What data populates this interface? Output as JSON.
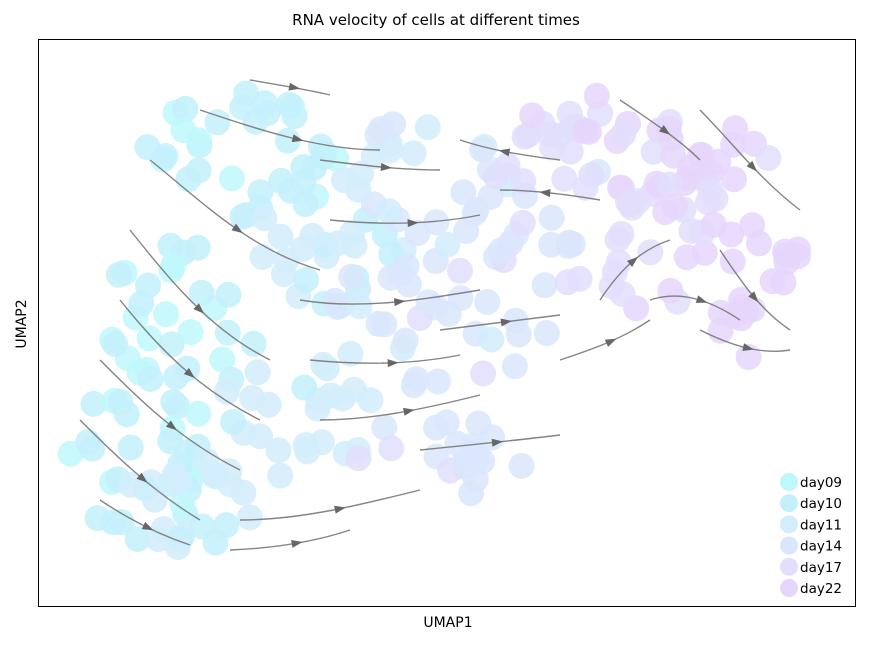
{
  "chart_data": {
    "type": "scatter",
    "title": "RNA velocity of cells at different times",
    "xlabel": "UMAP1",
    "ylabel": "UMAP2",
    "xticks": [],
    "yticks": [],
    "legend_position": "bottom-right",
    "overlay": "velocity streamlines (gray arrows)",
    "series": [
      {
        "name": "day09",
        "color": "#bff8fb"
      },
      {
        "name": "day10",
        "color": "#c3f0fb"
      },
      {
        "name": "day11",
        "color": "#d2edfb"
      },
      {
        "name": "day14",
        "color": "#d9e6fb"
      },
      {
        "name": "day17",
        "color": "#e2defb"
      },
      {
        "name": "day22",
        "color": "#e6d6fb"
      }
    ]
  }
}
